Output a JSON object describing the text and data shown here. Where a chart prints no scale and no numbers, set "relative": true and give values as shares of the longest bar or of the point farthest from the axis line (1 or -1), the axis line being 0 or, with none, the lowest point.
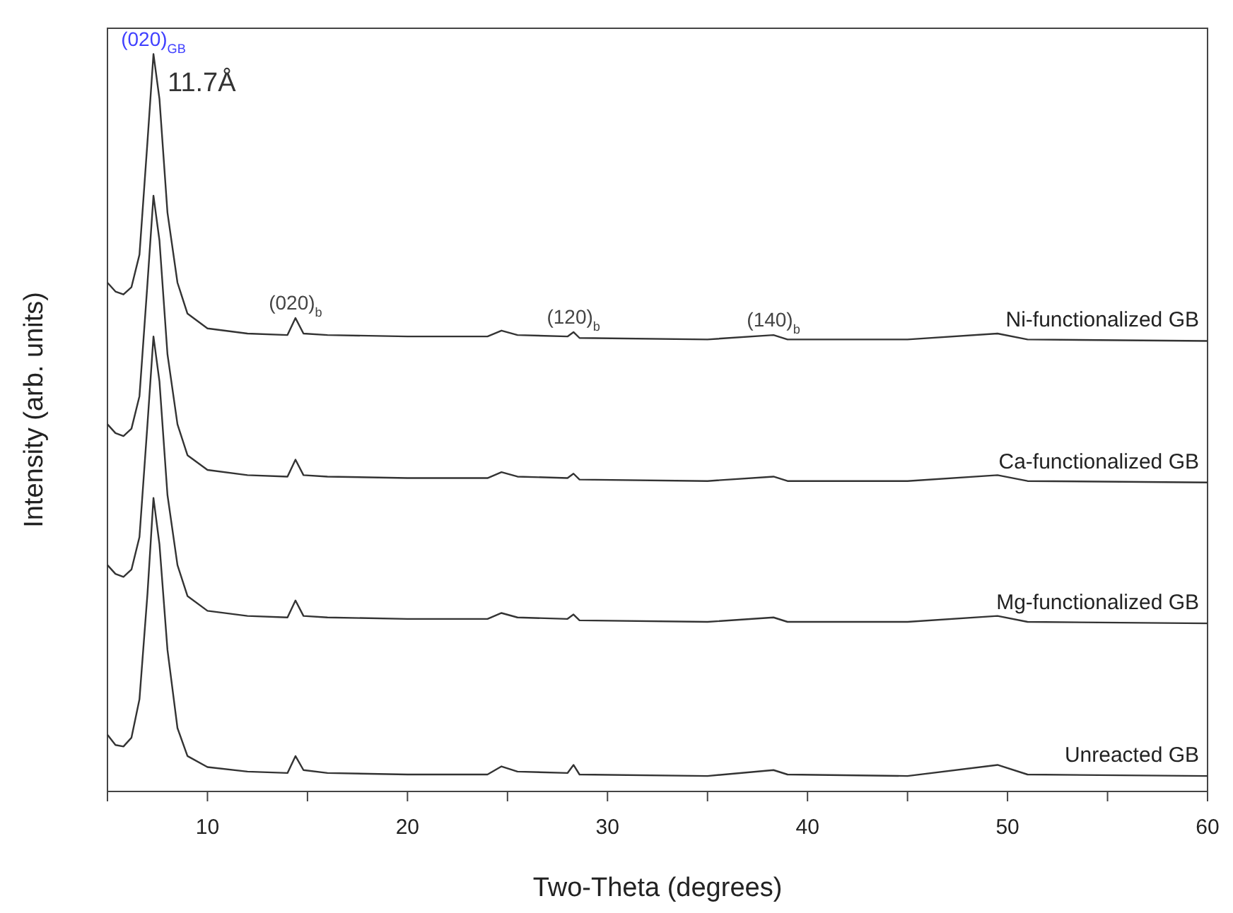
{
  "chart_data": {
    "type": "line",
    "relative": true,
    "xlabel": "Two-Theta (degrees)",
    "ylabel": "Intensity (arb. units)",
    "x": [
      5,
      5.4,
      5.8,
      6.2,
      6.6,
      7.0,
      7.3,
      7.6,
      8.0,
      8.5,
      9.0,
      10,
      12,
      14,
      14.4,
      14.8,
      16,
      20,
      24,
      24.7,
      25.5,
      28,
      28.3,
      28.6,
      35,
      38.3,
      39,
      45,
      49.5,
      51,
      60
    ],
    "xlim": [
      5,
      60
    ],
    "xticks": [
      {
        "value": 5,
        "label": null
      },
      10,
      {
        "value": 15,
        "label": null
      },
      20,
      {
        "value": 25,
        "label": null
      },
      30,
      {
        "value": 35,
        "label": null
      },
      40,
      {
        "value": 45,
        "label": null
      },
      50,
      {
        "value": 55,
        "label": null
      },
      60
    ],
    "grid": false,
    "legend": false,
    "marker": "none",
    "line_style": "solid",
    "series": [
      {
        "name": "Ni-functionalized GB",
        "color": "#333333",
        "values": [
          0.69,
          0.678,
          0.674,
          0.684,
          0.728,
          0.881,
          1,
          0.939,
          0.785,
          0.69,
          0.648,
          0.628,
          0.621,
          0.619,
          0.642,
          0.621,
          0.619,
          0.617,
          0.617,
          0.625,
          0.619,
          0.617,
          0.623,
          0.615,
          0.613,
          0.619,
          0.613,
          0.613,
          0.621,
          0.613,
          0.611
        ]
      },
      {
        "name": "Ca-functionalized GB",
        "color": "#333333",
        "values": [
          0.498,
          0.486,
          0.482,
          0.492,
          0.536,
          0.689,
          0.808,
          0.747,
          0.593,
          0.498,
          0.456,
          0.436,
          0.429,
          0.427,
          0.45,
          0.429,
          0.427,
          0.425,
          0.425,
          0.433,
          0.427,
          0.425,
          0.431,
          0.423,
          0.421,
          0.427,
          0.421,
          0.421,
          0.429,
          0.421,
          0.419
        ]
      },
      {
        "name": "Mg-functionalized GB",
        "color": "#333333",
        "values": [
          0.307,
          0.295,
          0.291,
          0.301,
          0.345,
          0.498,
          0.617,
          0.556,
          0.402,
          0.307,
          0.265,
          0.245,
          0.238,
          0.236,
          0.259,
          0.238,
          0.236,
          0.234,
          0.234,
          0.242,
          0.236,
          0.234,
          0.24,
          0.232,
          0.23,
          0.236,
          0.23,
          0.23,
          0.238,
          0.23,
          0.228
        ]
      },
      {
        "name": "Unreacted GB",
        "color": "#333333",
        "values": [
          0.077,
          0.063,
          0.061,
          0.073,
          0.125,
          0.268,
          0.398,
          0.335,
          0.192,
          0.086,
          0.048,
          0.033,
          0.027,
          0.025,
          0.048,
          0.029,
          0.025,
          0.023,
          0.023,
          0.034,
          0.027,
          0.025,
          0.036,
          0.023,
          0.021,
          0.029,
          0.023,
          0.021,
          0.036,
          0.023,
          0.021
        ]
      }
    ],
    "annotations": [
      {
        "text": "(020)$_{GB}$",
        "x": 7.3,
        "y": 1
      },
      {
        "text": "11.7Å",
        "x": 7.3,
        "y": 1
      },
      {
        "text": "(020)$_{b}$",
        "x": 14.4,
        "y": 0.642
      },
      {
        "text": "(120)$_{b}$",
        "x": 28.3,
        "y": 0.623
      },
      {
        "text": "(140)$_{b}$",
        "x": 38.3,
        "y": 0.619
      }
    ]
  }
}
